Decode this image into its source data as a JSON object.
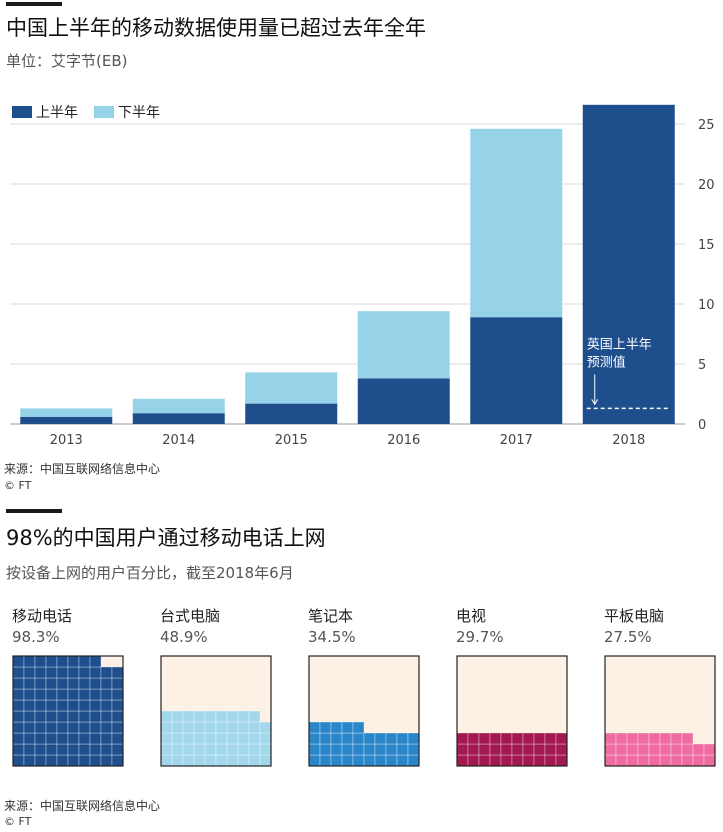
{
  "chart1": {
    "title": "中国上半年的移动数据使用量已超过去年全年",
    "subtitle": "单位：艾字节(EB)",
    "source": "来源：中国互联网络信息中心",
    "credit": "© FT"
  },
  "chart2": {
    "title": "98%的中国用户通过移动电话上网",
    "subtitle": "按设备上网的用户百分比，截至2018年6月",
    "source": "来源：中国互联网络信息中心",
    "credit": "© FT"
  },
  "colors": {
    "first_half": "#1f4e8c",
    "second_half": "#96d3e8",
    "grid": "#d9d9d9",
    "waffle_bg": "#fdf1e5"
  },
  "chart_data": [
    {
      "type": "bar",
      "stacked": true,
      "title": "中国上半年的移动数据使用量已超过去年全年",
      "subtitle": "单位：艾字节(EB)",
      "categories": [
        "2013",
        "2014",
        "2015",
        "2016",
        "2017",
        "2018"
      ],
      "series": [
        {
          "name": "上半年",
          "color": "#1f4e8c",
          "values": [
            0.6,
            0.9,
            1.7,
            3.8,
            8.9,
            26.6
          ]
        },
        {
          "name": "下半年",
          "color": "#96d3e8",
          "values": [
            0.7,
            1.2,
            2.6,
            5.6,
            15.7,
            0
          ]
        }
      ],
      "ylim": [
        0,
        27
      ],
      "yticks": [
        0,
        5,
        10,
        15,
        20,
        25
      ],
      "y_axis_side": "right",
      "grid": true,
      "legend": "top-left",
      "annotation": {
        "text_line1": "英国上半年",
        "text_line2": "预测值",
        "category": "2018",
        "value": 1.3
      }
    },
    {
      "type": "waffle",
      "title": "98%的中国用户通过移动电话上网",
      "subtitle": "按设备上网的用户百分比，截至2018年6月",
      "items": [
        {
          "label": "移动电话",
          "pct_label": "98.3%",
          "value": 98.3,
          "color": "#1f4e8c"
        },
        {
          "label": "台式电脑",
          "pct_label": "48.9%",
          "value": 48.9,
          "color": "#a3d8ec"
        },
        {
          "label": "笔记本",
          "pct_label": "34.5%",
          "value": 34.5,
          "color": "#2b86c9"
        },
        {
          "label": "电视",
          "pct_label": "29.7%",
          "value": 29.7,
          "color": "#a3184f"
        },
        {
          "label": "平板电脑",
          "pct_label": "27.5%",
          "value": 27.5,
          "color": "#f06ca0"
        }
      ]
    }
  ]
}
